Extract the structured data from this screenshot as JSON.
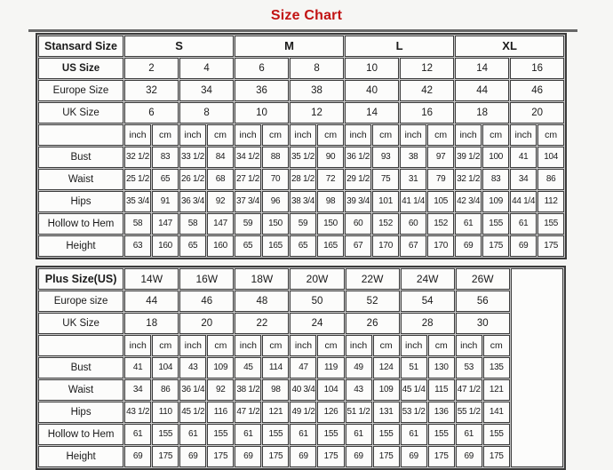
{
  "title": "Size Chart",
  "title_color": "#c21313",
  "border_color": "#3b3b3b",
  "chart_data": [
    {
      "type": "table",
      "name": "standard-sizes",
      "corner_label": "Stansard Size",
      "group_headers": [
        "S",
        "M",
        "L",
        "XL"
      ],
      "group_colspan": 4,
      "groups_bold": true,
      "has_filler": false,
      "size_rows": [
        {
          "label": "US Size",
          "bold": true,
          "values": [
            "2",
            "4",
            "6",
            "8",
            "10",
            "12",
            "14",
            "16"
          ]
        },
        {
          "label": "Europe Size",
          "bold": false,
          "values": [
            "32",
            "34",
            "36",
            "38",
            "40",
            "42",
            "44",
            "46"
          ]
        },
        {
          "label": "UK Size",
          "bold": false,
          "values": [
            "6",
            "8",
            "10",
            "12",
            "14",
            "16",
            "18",
            "20"
          ]
        }
      ],
      "unit_headers": [
        "inch",
        "cm"
      ],
      "measure_rows": [
        {
          "label": "Bust",
          "values": [
            "32 1/2",
            "83",
            "33 1/2",
            "84",
            "34 1/2",
            "88",
            "35 1/2",
            "90",
            "36 1/2",
            "93",
            "38",
            "97",
            "39 1/2",
            "100",
            "41",
            "104"
          ]
        },
        {
          "label": "Waist",
          "values": [
            "25 1/2",
            "65",
            "26 1/2",
            "68",
            "27 1/2",
            "70",
            "28 1/2",
            "72",
            "29 1/2",
            "75",
            "31",
            "79",
            "32 1/2",
            "83",
            "34",
            "86"
          ]
        },
        {
          "label": "Hips",
          "values": [
            "35 3/4",
            "91",
            "36 3/4",
            "92",
            "37 3/4",
            "96",
            "38 3/4",
            "98",
            "39 3/4",
            "101",
            "41 1/4",
            "105",
            "42 3/4",
            "109",
            "44 1/4",
            "112"
          ]
        },
        {
          "label": "Hollow to Hem",
          "values": [
            "58",
            "147",
            "58",
            "147",
            "59",
            "150",
            "59",
            "150",
            "60",
            "152",
            "60",
            "152",
            "61",
            "155",
            "61",
            "155"
          ]
        },
        {
          "label": "Height",
          "values": [
            "63",
            "160",
            "65",
            "160",
            "65",
            "165",
            "65",
            "165",
            "67",
            "170",
            "67",
            "170",
            "69",
            "175",
            "69",
            "175"
          ]
        }
      ]
    },
    {
      "type": "table",
      "name": "plus-sizes",
      "corner_label": "Plus Size(US)",
      "group_headers": [
        "14W",
        "16W",
        "18W",
        "20W",
        "22W",
        "24W",
        "26W"
      ],
      "group_colspan": 2,
      "groups_bold": false,
      "has_filler": true,
      "size_rows": [
        {
          "label": "Europe size",
          "bold": false,
          "values": [
            "44",
            "46",
            "48",
            "50",
            "52",
            "54",
            "56"
          ]
        },
        {
          "label": "UK Size",
          "bold": false,
          "values": [
            "18",
            "20",
            "22",
            "24",
            "26",
            "28",
            "30"
          ]
        }
      ],
      "unit_headers": [
        "inch",
        "cm"
      ],
      "measure_rows": [
        {
          "label": "Bust",
          "values": [
            "41",
            "104",
            "43",
            "109",
            "45",
            "114",
            "47",
            "119",
            "49",
            "124",
            "51",
            "130",
            "53",
            "135"
          ]
        },
        {
          "label": "Waist",
          "values": [
            "34",
            "86",
            "36 1/4",
            "92",
            "38 1/2",
            "98",
            "40 3/4",
            "104",
            "43",
            "109",
            "45 1/4",
            "115",
            "47 1/2",
            "121"
          ]
        },
        {
          "label": "Hips",
          "values": [
            "43 1/2",
            "110",
            "45 1/2",
            "116",
            "47 1/2",
            "121",
            "49 1/2",
            "126",
            "51 1/2",
            "131",
            "53 1/2",
            "136",
            "55 1/2",
            "141"
          ]
        },
        {
          "label": "Hollow to Hem",
          "values": [
            "61",
            "155",
            "61",
            "155",
            "61",
            "155",
            "61",
            "155",
            "61",
            "155",
            "61",
            "155",
            "61",
            "155"
          ]
        },
        {
          "label": "Height",
          "values": [
            "69",
            "175",
            "69",
            "175",
            "69",
            "175",
            "69",
            "175",
            "69",
            "175",
            "69",
            "175",
            "69",
            "175"
          ]
        }
      ]
    }
  ]
}
